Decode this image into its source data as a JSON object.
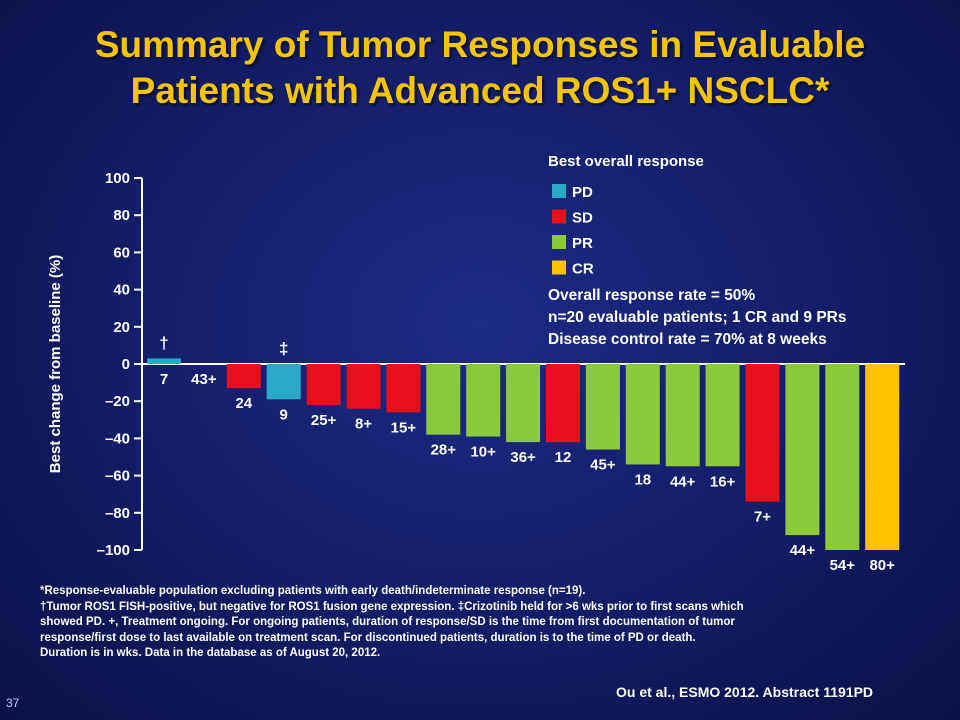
{
  "slide": {
    "title_line1": "Summary of Tumor Responses in Evaluable",
    "title_line2": "Patients with Advanced ROS1+ NSCLC*",
    "slide_number": "37",
    "source": "Ou et al., ESMO 2012. Abstract 1191PD",
    "footnotes": [
      "*Response-evaluable population excluding patients with early death/indeterminate response (n=19).",
      "†Tumor ROS1 FISH-positive, but negative for ROS1 fusion gene expression. ‡Crizotinib held for >6 wks prior to first scans which",
      "showed PD. +, Treatment ongoing. For ongoing patients, duration of response/SD is the time from first documentation of tumor",
      "response/first dose to last available on treatment scan. For discontinued patients, duration is to the time of PD or death.",
      "Duration is in wks. Data in the database as of August 20, 2012."
    ],
    "stats": [
      "Overall response rate = 50%",
      "n=20 evaluable patients; 1 CR and 9 PRs",
      "Disease control rate = 70% at 8 weeks"
    ]
  },
  "chart_data": {
    "type": "bar",
    "title": "",
    "xlabel": "",
    "ylabel": "Best change from baseline (%)",
    "ylim": [
      -100,
      100
    ],
    "yticks": [
      100,
      80,
      60,
      40,
      20,
      0,
      -20,
      -40,
      -60,
      -80,
      -100
    ],
    "ytick_labels": [
      "100",
      "80",
      "60",
      "40",
      "20",
      "0",
      "–20",
      "–40",
      "–60",
      "–80",
      "–100"
    ],
    "legend_title": "Best overall response",
    "legend_position": "top-right",
    "colors": {
      "PD": "#29a8c8",
      "SD": "#e8101a",
      "PR": "#8cc83c",
      "CR": "#ffc000"
    },
    "legend": [
      "PD",
      "SD",
      "PR",
      "CR"
    ],
    "bars": [
      {
        "value": 3,
        "response": "PD",
        "label": "7",
        "marker": "†"
      },
      {
        "value": 0,
        "response": "PD",
        "label": "43+",
        "marker": ""
      },
      {
        "value": -13,
        "response": "SD",
        "label": "24",
        "marker": ""
      },
      {
        "value": -19,
        "response": "PD",
        "label": "9",
        "marker": "‡"
      },
      {
        "value": -22,
        "response": "SD",
        "label": "25+",
        "marker": ""
      },
      {
        "value": -24,
        "response": "SD",
        "label": "8+",
        "marker": ""
      },
      {
        "value": -26,
        "response": "SD",
        "label": "15+",
        "marker": ""
      },
      {
        "value": -38,
        "response": "PR",
        "label": "28+",
        "marker": ""
      },
      {
        "value": -39,
        "response": "PR",
        "label": "10+",
        "marker": ""
      },
      {
        "value": -42,
        "response": "PR",
        "label": "36+",
        "marker": ""
      },
      {
        "value": -42,
        "response": "SD",
        "label": "12",
        "marker": ""
      },
      {
        "value": -46,
        "response": "PR",
        "label": "45+",
        "marker": ""
      },
      {
        "value": -54,
        "response": "PR",
        "label": "18",
        "marker": ""
      },
      {
        "value": -55,
        "response": "PR",
        "label": "44+",
        "marker": ""
      },
      {
        "value": -55,
        "response": "PR",
        "label": "16+",
        "marker": ""
      },
      {
        "value": -74,
        "response": "SD",
        "label": "7+",
        "marker": ""
      },
      {
        "value": -92,
        "response": "PR",
        "label": "44+",
        "marker": ""
      },
      {
        "value": -100,
        "response": "PR",
        "label": "54+",
        "marker": ""
      },
      {
        "value": -100,
        "response": "CR",
        "label": "80+",
        "marker": ""
      }
    ]
  }
}
